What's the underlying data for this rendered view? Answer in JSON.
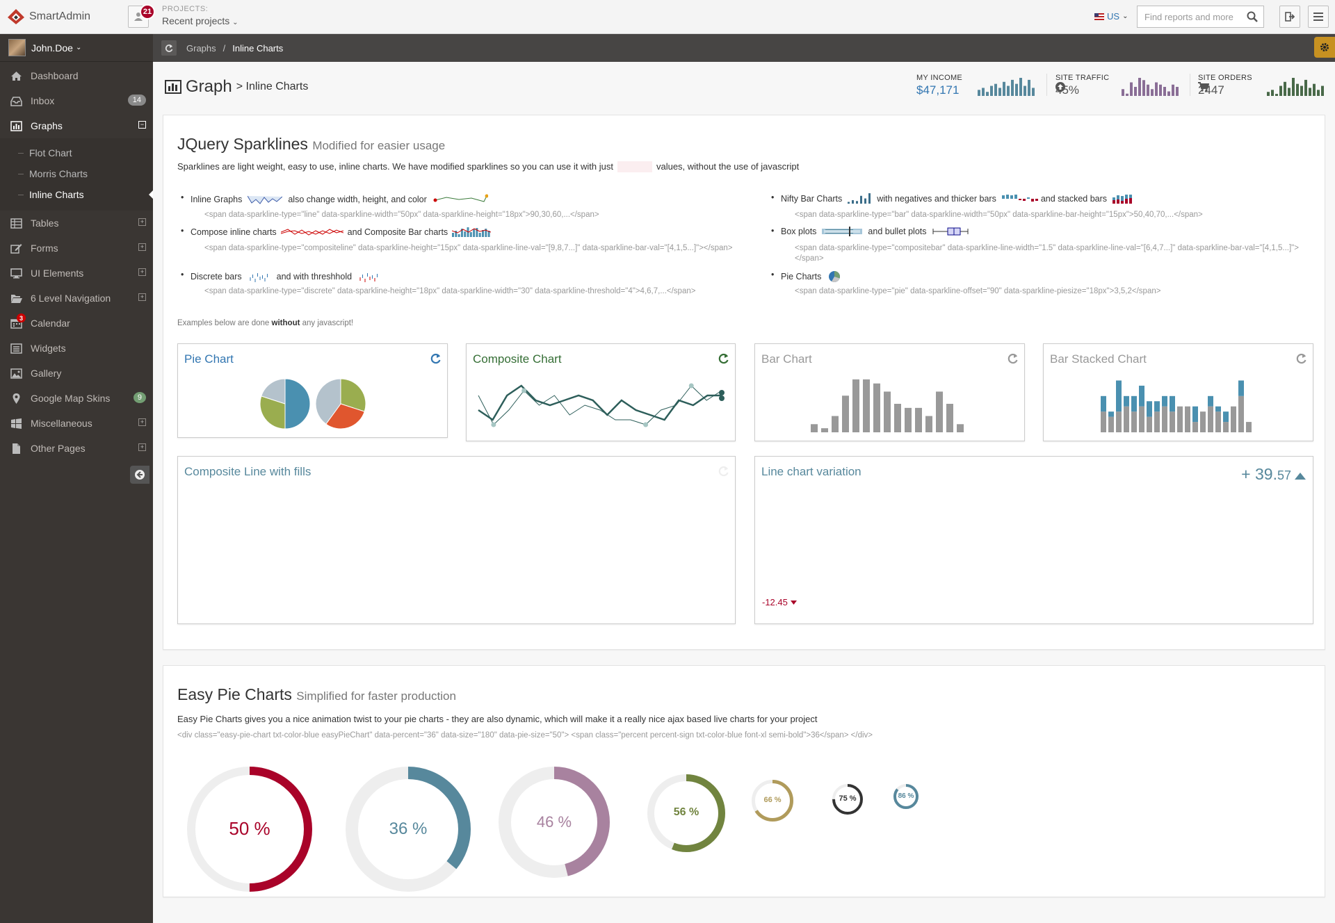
{
  "header": {
    "logo_text": "SmartAdmin",
    "notifications_count": "21",
    "projects_label": "PROJECTS:",
    "projects_value": "Recent projects",
    "language": "US",
    "search_placeholder": "Find reports and more"
  },
  "sidebar": {
    "user_name": "John.Doe",
    "items": [
      {
        "label": "Dashboard",
        "icon": "home-icon"
      },
      {
        "label": "Inbox",
        "icon": "inbox-icon",
        "count": "14"
      },
      {
        "label": "Graphs",
        "icon": "bar-chart-icon",
        "expanded": true
      },
      {
        "label": "Tables",
        "icon": "table-icon"
      },
      {
        "label": "Forms",
        "icon": "edit-icon"
      },
      {
        "label": "UI Elements",
        "icon": "desktop-icon"
      },
      {
        "label": "6 Level Navigation",
        "icon": "folder-open-icon"
      },
      {
        "label": "Calendar",
        "icon": "calendar-icon",
        "badge": "3"
      },
      {
        "label": "Widgets",
        "icon": "list-icon"
      },
      {
        "label": "Gallery",
        "icon": "picture-icon"
      },
      {
        "label": "Google Map Skins",
        "icon": "map-marker-icon",
        "count": "9"
      },
      {
        "label": "Miscellaneous",
        "icon": "windows-icon"
      },
      {
        "label": "Other Pages",
        "icon": "file-icon"
      }
    ],
    "graphs_sub": [
      "Flot Chart",
      "Morris Charts",
      "Inline Charts"
    ],
    "active_sub": "Inline Charts"
  },
  "breadcrumb": [
    "Graphs",
    "Inline Charts"
  ],
  "page": {
    "title": "Graph",
    "subtitle": "> Inline Charts",
    "stats": [
      {
        "label": "MY INCOME",
        "value": "$47,171",
        "icon": ""
      },
      {
        "label": "SITE TRAFFIC",
        "value": "45%",
        "icon": "arrow-circle-up-icon"
      },
      {
        "label": "SITE ORDERS",
        "value": "2447",
        "icon": "shopping-cart-icon"
      }
    ]
  },
  "sparklines": {
    "title": "JQuery Sparklines",
    "title_small": "Modified for easier usage",
    "description_before": "Sparklines are light weight, easy to use, inline charts. We have modified sparklines so you can use it with just",
    "description_after": "values, without the use of javascript",
    "left_items": [
      {
        "a": "Inline Graphs",
        "b": "also change width, height, and color",
        "code": "<span data-sparkline-type=\"line\" data-sparkline-width=\"50px\" data-sparkline-height=\"18px\">90,30,60,...</span>"
      },
      {
        "a": "Compose inline charts",
        "b": "and Composite Bar charts",
        "code": "<span data-sparkline-type=\"compositeline\" data-sparkline-height=\"15px\" data-sparkline-line-val=\"[9,8,7...]\" data-sparkline-bar-val=\"[4,1,5...]\"></span>"
      },
      {
        "a": "Discrete bars",
        "b": "and with threshhold",
        "code": "<span data-sparkline-type=\"discrete\" data-sparkline-height=\"18px\" data-sparkline-width=\"30\" data-sparkline-threshold=\"4\">4,6,7,...</span>"
      }
    ],
    "right_items": [
      {
        "a": "Nifty Bar Charts",
        "b": "with negatives and thicker bars",
        "c": "and stacked bars",
        "code": "<span data-sparkline-type=\"bar\" data-sparkline-width=\"50px\" data-sparkline-bar-height=\"15px\">50,40,70,...</span>"
      },
      {
        "a": "Box plots",
        "b": "and bullet plots",
        "code": "<span data-sparkline-type=\"compositebar\" data-sparkline-line-width=\"1.5\" data-sparkline-line-val=\"[6,4,7...]\" data-sparkline-bar-val=\"[4,1,5...]\"></span>"
      },
      {
        "a": "Pie Charts",
        "code": "<span data-sparkline-type=\"pie\" data-sparkline-offset=\"90\" data-sparkline-piesize=\"18px\">3,5,2</span>"
      }
    ],
    "note_before": "Examples below are done",
    "note_bold": "without",
    "note_after": "any javascript!"
  },
  "cards": {
    "pie": "Pie Chart",
    "composite": "Composite Chart",
    "bar": "Bar Chart",
    "bar_stacked": "Bar Stacked Chart",
    "composite_fills": "Composite Line with fills",
    "line_variation": "Line chart variation",
    "line_variation_value": "+ 39.",
    "line_variation_decimal": "57",
    "line_variation_bottom": "-12.45"
  },
  "easy_pie": {
    "title": "Easy Pie Charts",
    "title_small": "Simplified for faster production",
    "description": "Easy Pie Charts gives you a nice animation twist to your pie charts - they are also dynamic, which will make it a really nice ajax based live charts for your project",
    "code": "<div class=\"easy-pie-chart txt-color-blue easyPieChart\" data-percent=\"36\" data-size=\"180\" data-pie-size=\"50\"> <span class=\"percent percent-sign txt-color-blue font-xl semi-bold\">36</span> </div>",
    "charts": [
      {
        "percent": 50,
        "label": "50 %",
        "color": "#a90329"
      },
      {
        "percent": 36,
        "label": "36 %",
        "color": "#57889c"
      },
      {
        "percent": 46,
        "label": "46 %",
        "color": "#a8829f"
      },
      {
        "percent": 56,
        "label": "56 %",
        "color": "#71843f"
      },
      {
        "percent": 66,
        "label": "66 %",
        "color": "#b09b5b"
      },
      {
        "percent": 75,
        "label": "75 %",
        "color": "#333333"
      },
      {
        "percent": 86,
        "label": "86 %",
        "color": "#57889c"
      }
    ]
  },
  "chart_data": [
    {
      "type": "bar",
      "title": "Bar Chart",
      "values": [
        2,
        1,
        4,
        9,
        13,
        13,
        12,
        10,
        7,
        6,
        6,
        4,
        10,
        7,
        2
      ]
    },
    {
      "type": "bar",
      "title": "Bar Stacked Chart",
      "series": [
        {
          "name": "",
          "values": [
            4,
            3,
            4,
            5,
            4,
            5,
            3,
            4,
            5,
            4,
            5,
            5,
            2,
            4,
            5,
            4,
            2,
            5,
            7,
            2
          ]
        },
        {
          "name": "",
          "values": [
            3,
            1,
            6,
            2,
            3,
            4,
            3,
            2,
            2,
            3,
            0,
            0,
            3,
            0,
            2,
            1,
            2,
            0,
            3,
            0
          ]
        }
      ]
    },
    {
      "type": "pie",
      "title": "Pie Chart",
      "values": [
        [
          5,
          3,
          2
        ],
        [
          3,
          3,
          4
        ]
      ]
    },
    {
      "type": "line",
      "title": "Composite Chart",
      "series": [
        {
          "name": "",
          "values": [
            4,
            2,
            7,
            9,
            6,
            5,
            6,
            7,
            6,
            3,
            6,
            4,
            3,
            2,
            6,
            5,
            7,
            7
          ]
        },
        {
          "name": "",
          "values": [
            7,
            1,
            4,
            8,
            5,
            7,
            3,
            5,
            4,
            2,
            2,
            1,
            4,
            5,
            9,
            6,
            8
          ]
        }
      ]
    }
  ],
  "colors": {
    "accent_blue": "#3276b1",
    "sidebar": "#3a3633",
    "ribbon": "#474544",
    "orange": "#c79121"
  }
}
